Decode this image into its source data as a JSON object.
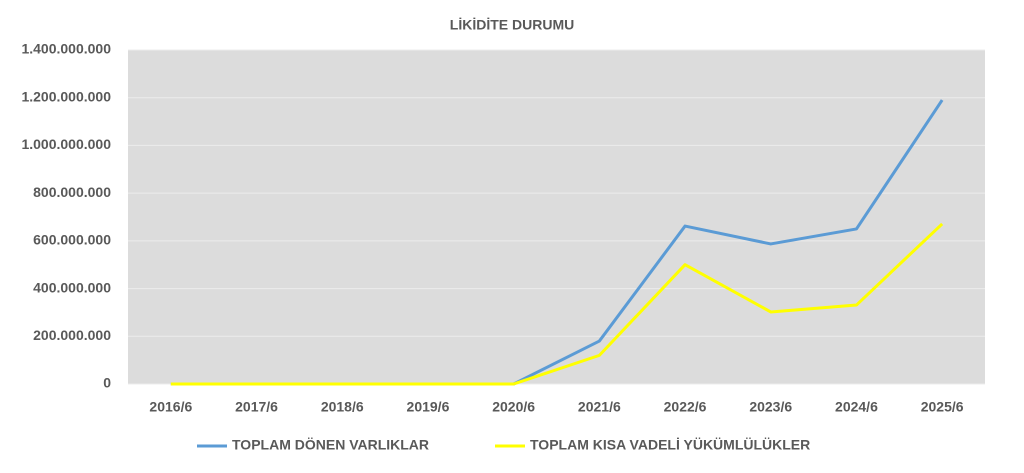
{
  "chart_data": {
    "type": "line",
    "title": "LİKİDİTE DURUMU",
    "categories": [
      "2016/6",
      "2017/6",
      "2018/6",
      "2019/6",
      "2020/6",
      "2021/6",
      "2022/6",
      "2023/6",
      "2024/6",
      "2025/6"
    ],
    "series": [
      {
        "name": "TOPLAM DÖNEN VARLIKLAR",
        "color": "#5b9bd5",
        "values": [
          0,
          0,
          0,
          0,
          0,
          180000000,
          662000000,
          587000000,
          650000000,
          1190000000
        ]
      },
      {
        "name": "TOPLAM KISA VADELİ YÜKÜMLÜLÜKLER",
        "color": "#ffff00",
        "values": [
          0,
          0,
          0,
          0,
          0,
          120000000,
          500000000,
          302000000,
          331000000,
          671000000
        ]
      }
    ],
    "ylim": [
      0,
      1400000000
    ],
    "yticks": [
      0,
      {
        "value": 200000000,
        "label": "200.000.000"
      },
      {
        "value": 400000000,
        "label": "400.000.000"
      },
      {
        "value": 600000000,
        "label": "600.000.000"
      },
      {
        "value": 800000000,
        "label": "800.000.000"
      },
      {
        "value": 1000000000,
        "label": "1.000.000.000"
      },
      {
        "value": 1200000000,
        "label": "1.200.000.000"
      },
      {
        "value": 1400000000,
        "label": "1.400.000.000"
      }
    ],
    "grid": true,
    "legend": "bottom"
  }
}
